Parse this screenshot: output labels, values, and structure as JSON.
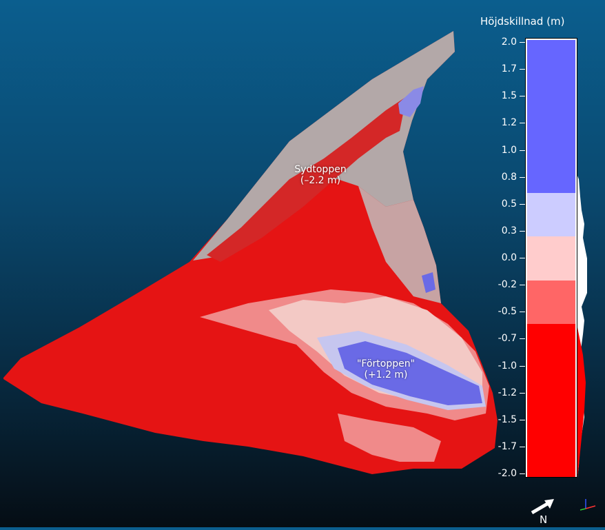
{
  "annotations": {
    "south_summit": {
      "name": "Sydtoppen",
      "value": "(–2.2 m)"
    },
    "fore_summit": {
      "name": "\"Förtoppen\"",
      "value": "(+1.2 m)"
    }
  },
  "scalebar": {
    "title": "Höjdskillnad (m)",
    "ticks": [
      "2.0",
      "1.7",
      "1.5",
      "1.2",
      "1.0",
      "0.8",
      "0.5",
      "0.3",
      "0.0",
      "-0.2",
      "-0.5",
      "-0.7",
      "-1.0",
      "-1.2",
      "-1.5",
      "-1.7",
      "-2.0"
    ],
    "range": [
      -2.0,
      2.0
    ],
    "bands": [
      {
        "from": 0.6,
        "to": 2.0,
        "color": "#6666ff"
      },
      {
        "from": 0.2,
        "to": 0.6,
        "color": "#ccccff"
      },
      {
        "from": -0.2,
        "to": 0.2,
        "color": "#ffcccc"
      },
      {
        "from": -0.6,
        "to": -0.2,
        "color": "#ff6666"
      },
      {
        "from": -2.0,
        "to": -0.6,
        "color": "#ff0000"
      }
    ]
  },
  "compass": {
    "label": "N"
  },
  "colors": {
    "deep_red": "#e51414",
    "light_red": "#f08a8a",
    "pink": "#f3c9c5",
    "lavender": "#c6c6ef",
    "blue": "#6a6ae6",
    "grey": "#b3a8a8"
  }
}
